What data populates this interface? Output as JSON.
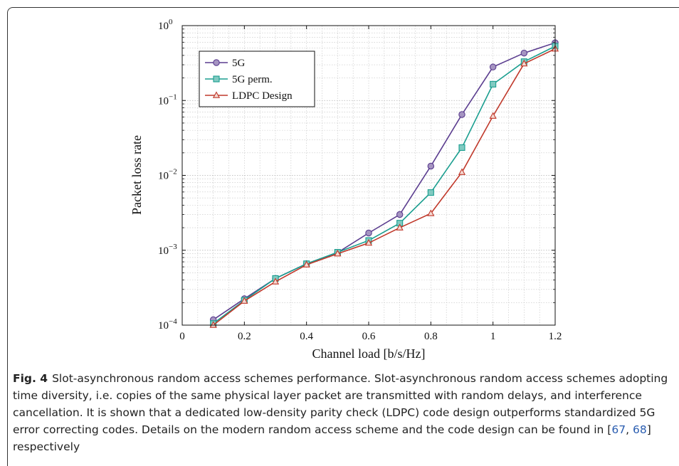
{
  "chart_data": {
    "type": "line",
    "xlabel": "Channel load [b/s/Hz]",
    "ylabel": "Packet loss rate",
    "xlim": [
      0,
      1.2
    ],
    "ylim": [
      0.0001,
      1
    ],
    "yscale": "log",
    "grid": true,
    "legend_position": "top-left",
    "x_ticks": [
      "0",
      "0.2",
      "0.4",
      "0.6",
      "0.8",
      "1",
      "1.2"
    ],
    "y_ticks": [
      {
        "base": "10",
        "exp": "0"
      },
      {
        "base": "10",
        "exp": "−1"
      },
      {
        "base": "10",
        "exp": "−2"
      },
      {
        "base": "10",
        "exp": "−3"
      },
      {
        "base": "10",
        "exp": "−4"
      }
    ],
    "x": [
      0.1,
      0.2,
      0.3,
      0.4,
      0.5,
      0.6,
      0.7,
      0.8,
      0.9,
      1.0,
      1.1,
      1.2
    ],
    "series": [
      {
        "name": "5G",
        "color": "#5b3d8f",
        "marker": "circle",
        "values": [
          0.000118,
          0.000225,
          0.00042,
          0.00066,
          0.00093,
          0.0017,
          0.003,
          0.0133,
          0.065,
          0.28,
          0.43,
          0.59
        ]
      },
      {
        "name": "5G perm.",
        "color": "#1a9e8f",
        "marker": "square",
        "values": [
          0.000105,
          0.000215,
          0.00042,
          0.00066,
          0.00094,
          0.00135,
          0.0023,
          0.0059,
          0.0235,
          0.165,
          0.33,
          0.53
        ]
      },
      {
        "name": "LDPC Design",
        "color": "#c0392b",
        "marker": "triangle",
        "values": [
          0.0001,
          0.00021,
          0.00038,
          0.00064,
          0.0009,
          0.00125,
          0.002,
          0.0031,
          0.011,
          0.062,
          0.31,
          0.49
        ]
      }
    ]
  },
  "caption": {
    "label": "Fig. 4",
    "text_before_refs": "Slot-asynchronous random access schemes performance. Slot-asynchronous random access schemes adopting time diversity, i.e. copies of the same physical layer packet are transmitted with random delays, and interference cancellation. It is shown that a dedicated low-density parity check (LDPC) code design outperforms standardized 5G error correcting codes. Details on the modern random access scheme and the code design can be found in [",
    "ref1": "67",
    "ref_sep": ", ",
    "ref2": "68",
    "text_after_refs": "] respectively"
  }
}
